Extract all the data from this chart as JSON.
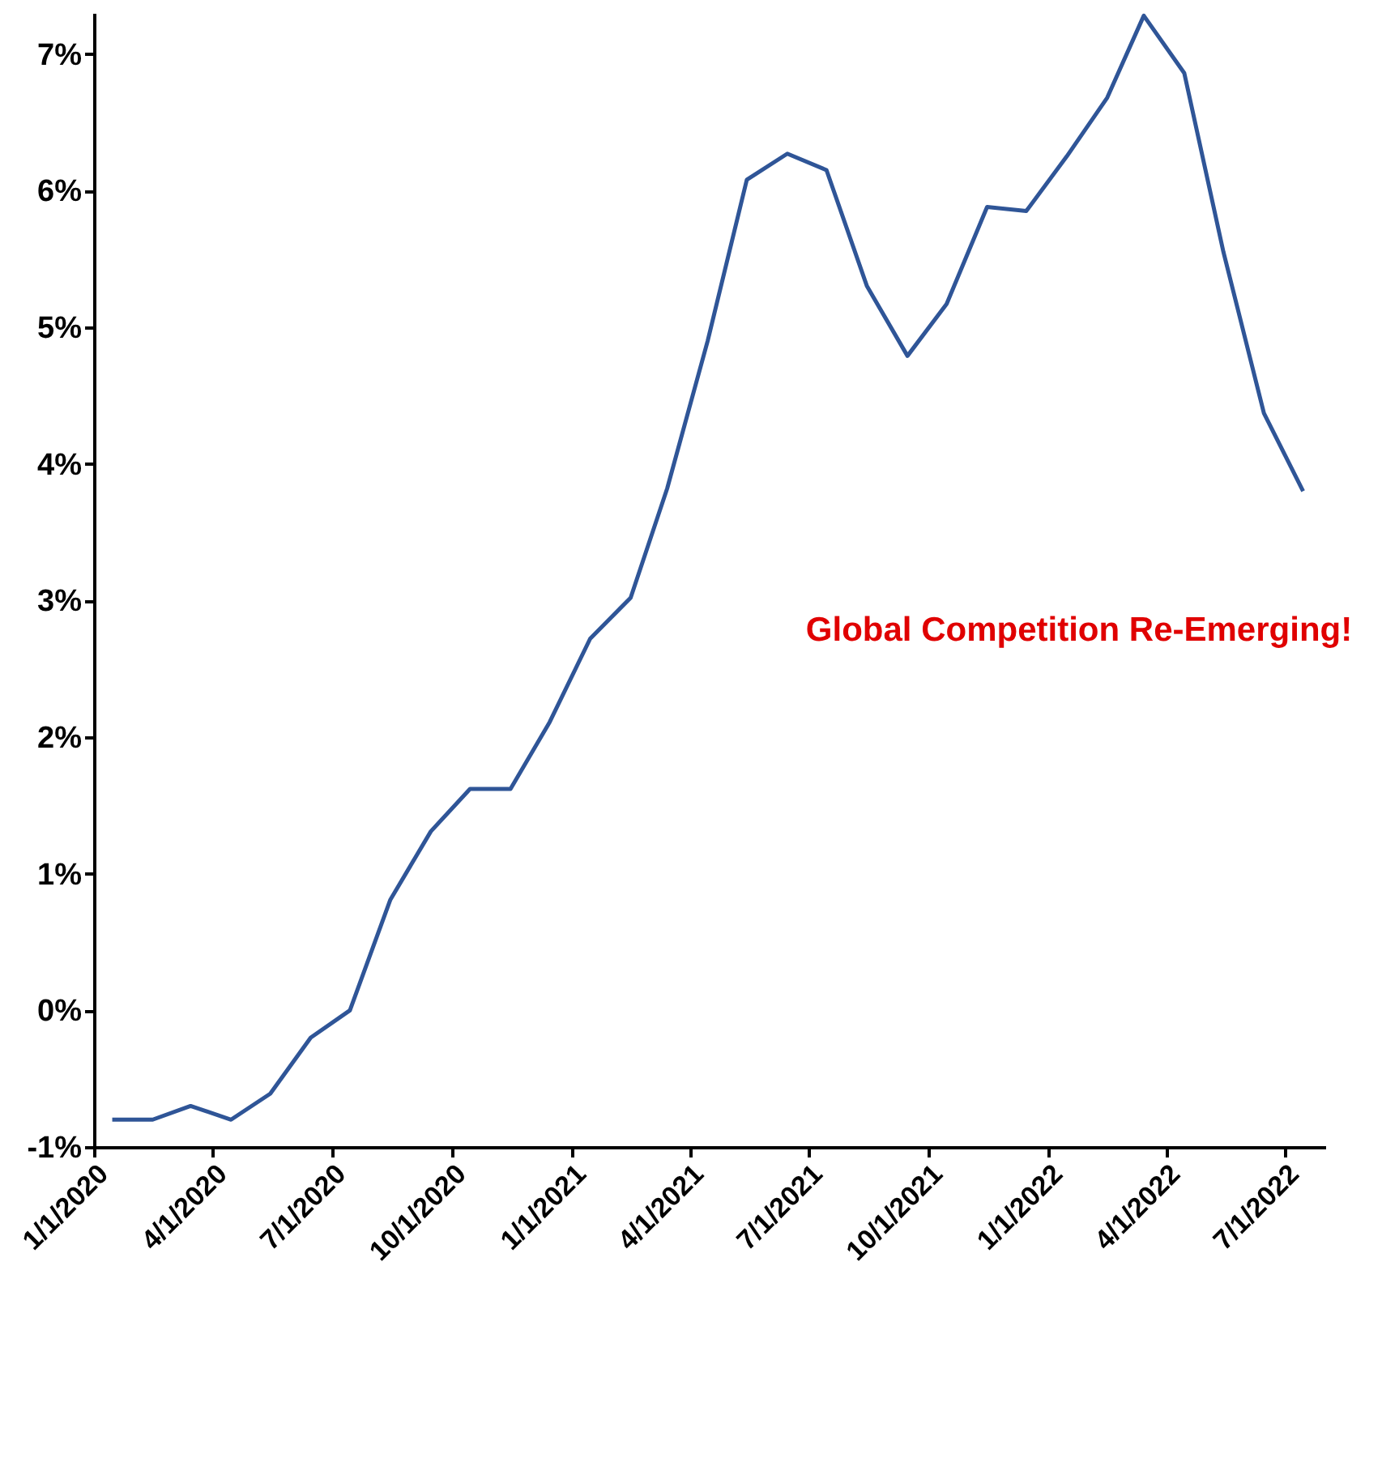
{
  "chart_data": {
    "type": "line",
    "x": [
      "2020-01-15",
      "2020-02-15",
      "2020-03-15",
      "2020-04-15",
      "2020-05-15",
      "2020-06-15",
      "2020-07-15",
      "2020-08-15",
      "2020-09-15",
      "2020-10-15",
      "2020-11-15",
      "2020-12-15",
      "2021-01-15",
      "2021-02-15",
      "2021-03-15",
      "2021-04-15",
      "2021-05-15",
      "2021-06-15",
      "2021-07-15",
      "2021-08-15",
      "2021-09-15",
      "2021-10-15",
      "2021-11-15",
      "2021-12-15",
      "2022-01-15",
      "2022-02-15",
      "2022-03-15",
      "2022-04-15",
      "2022-05-15",
      "2022-06-15",
      "2022-07-15"
    ],
    "series": [
      {
        "color": "#2f5597",
        "values": [
          -0.8,
          -0.8,
          -0.7,
          -0.8,
          -0.61,
          -0.2,
          0.0,
          0.81,
          1.31,
          1.62,
          1.62,
          2.11,
          2.72,
          3.02,
          3.82,
          4.9,
          6.08,
          6.27,
          6.15,
          5.3,
          4.79,
          5.17,
          5.88,
          5.85,
          6.25,
          6.68,
          7.28,
          6.86,
          5.55,
          4.37,
          3.8
        ]
      }
    ],
    "xlim": [
      "2020-01-01",
      "2022-08-01"
    ],
    "xticks": [
      {
        "value": "2020-01-01",
        "label": "1/1/2020"
      },
      {
        "value": "2020-04-01",
        "label": "4/1/2020"
      },
      {
        "value": "2020-07-01",
        "label": "7/1/2020"
      },
      {
        "value": "2020-10-01",
        "label": "10/1/2020"
      },
      {
        "value": "2021-01-01",
        "label": "1/1/2021"
      },
      {
        "value": "2021-04-01",
        "label": "4/1/2021"
      },
      {
        "value": "2021-07-01",
        "label": "7/1/2021"
      },
      {
        "value": "2021-10-01",
        "label": "10/1/2021"
      },
      {
        "value": "2022-01-01",
        "label": "1/1/2022"
      },
      {
        "value": "2022-04-01",
        "label": "4/1/2022"
      },
      {
        "value": "2022-07-01",
        "label": "7/1/2022"
      }
    ],
    "ylim": [
      -1,
      7.3
    ],
    "yticks": [
      {
        "value": -1,
        "label": "-1%"
      },
      {
        "value": 0,
        "label": "0%"
      },
      {
        "value": 1,
        "label": "1%"
      },
      {
        "value": 2,
        "label": "2%"
      },
      {
        "value": 3,
        "label": "3%"
      },
      {
        "value": 4,
        "label": "4%"
      },
      {
        "value": 5,
        "label": "5%"
      },
      {
        "value": 6,
        "label": "6%"
      },
      {
        "value": 7,
        "label": "7%"
      }
    ],
    "annotations": [
      "Global Competition Re-Emerging!"
    ],
    "grid": false,
    "legend": false,
    "line_style": "solid"
  }
}
